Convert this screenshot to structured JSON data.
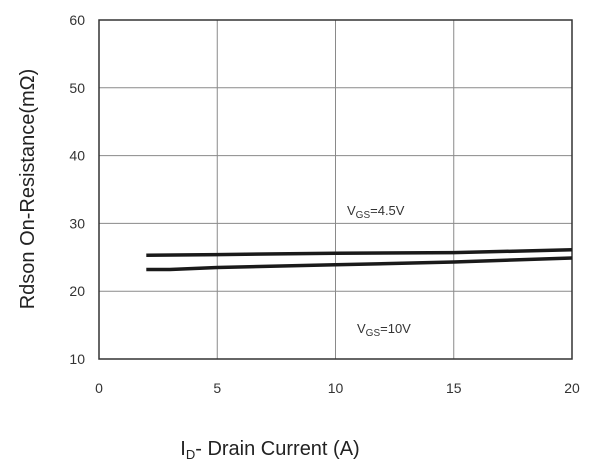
{
  "chart_data": {
    "type": "line",
    "title": "",
    "xlabel": {
      "main": "I",
      "sub": "D",
      "rest": "- Drain Current (A)"
    },
    "ylabel": "Rdson On-Resistance(mΩ)",
    "xlim": [
      0,
      20
    ],
    "ylim": [
      10,
      60
    ],
    "x_ticks": [
      "0",
      "5",
      "10",
      "15",
      "20"
    ],
    "y_ticks": [
      "10",
      "20",
      "30",
      "40",
      "50",
      "60"
    ],
    "grid": true,
    "line_color": "#1a1a1a",
    "series": [
      {
        "x": [
          2,
          5,
          10,
          15,
          20
        ],
        "y": [
          25.3,
          25.4,
          25.6,
          25.7,
          26.1
        ]
      },
      {
        "x": [
          2,
          3,
          5,
          10,
          15,
          20
        ],
        "y": [
          23.2,
          23.2,
          23.5,
          23.9,
          24.3,
          24.9
        ]
      }
    ],
    "annotations": [
      {
        "main": "V",
        "sub": "GS",
        "rest": "=4.5V"
      },
      {
        "main": "V",
        "sub": "GS",
        "rest": "=10V"
      }
    ]
  }
}
